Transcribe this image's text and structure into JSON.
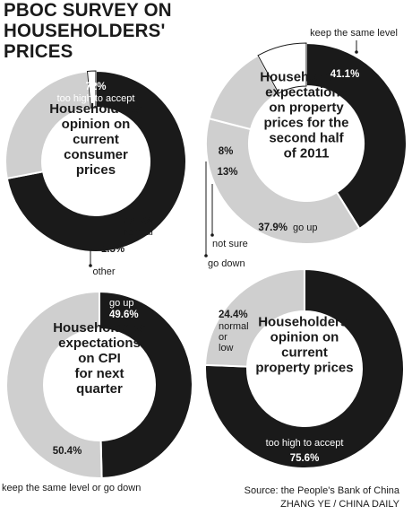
{
  "title": "PBOC SURVEY ON HOUSEHOLDERS' PRICES",
  "source": "Source: the People's Bank of China",
  "credit": "ZHANG YE / CHINA DAILY",
  "colors": {
    "dark": "#1a1a1a",
    "light": "#cfcfcf",
    "white": "#ffffff"
  },
  "chart_data": [
    {
      "type": "pie",
      "title": "Householders' opinion on current consumer prices",
      "slices": [
        {
          "label": "too high to accept",
          "value": 72.0,
          "display": "72%",
          "color": "#1a1a1a"
        },
        {
          "label": "normal",
          "value": 26.5,
          "display": "26.5%",
          "color": "#cfcfcf"
        },
        {
          "label": "other",
          "value": 1.5,
          "display": "1.5%",
          "color": "#ffffff"
        }
      ]
    },
    {
      "type": "pie",
      "title": "Householders' expectations on property prices for the second half of 2011",
      "slices": [
        {
          "label": "keep the same level",
          "value": 41.1,
          "display": "41.1%",
          "color": "#1a1a1a"
        },
        {
          "label": "go up",
          "value": 37.9,
          "display": "37.9%",
          "color": "#cfcfcf"
        },
        {
          "label": "go down",
          "value": 13.0,
          "display": "13%",
          "color": "#cfcfcf"
        },
        {
          "label": "not sure",
          "value": 8.0,
          "display": "8%",
          "color": "#ffffff"
        }
      ]
    },
    {
      "type": "pie",
      "title": "Householders' expectations on CPI for next quarter",
      "slices": [
        {
          "label": "go up",
          "value": 49.6,
          "display": "49.6%",
          "color": "#1a1a1a"
        },
        {
          "label": "keep the same level or go down",
          "value": 50.4,
          "display": "50.4%",
          "color": "#cfcfcf"
        }
      ]
    },
    {
      "type": "pie",
      "title": "Householders' opinion on current property prices",
      "slices": [
        {
          "label": "too high to accept",
          "value": 75.6,
          "display": "75.6%",
          "color": "#1a1a1a"
        },
        {
          "label": "normal or low",
          "value": 24.4,
          "display": "24.4%",
          "color": "#cfcfcf"
        }
      ]
    }
  ]
}
